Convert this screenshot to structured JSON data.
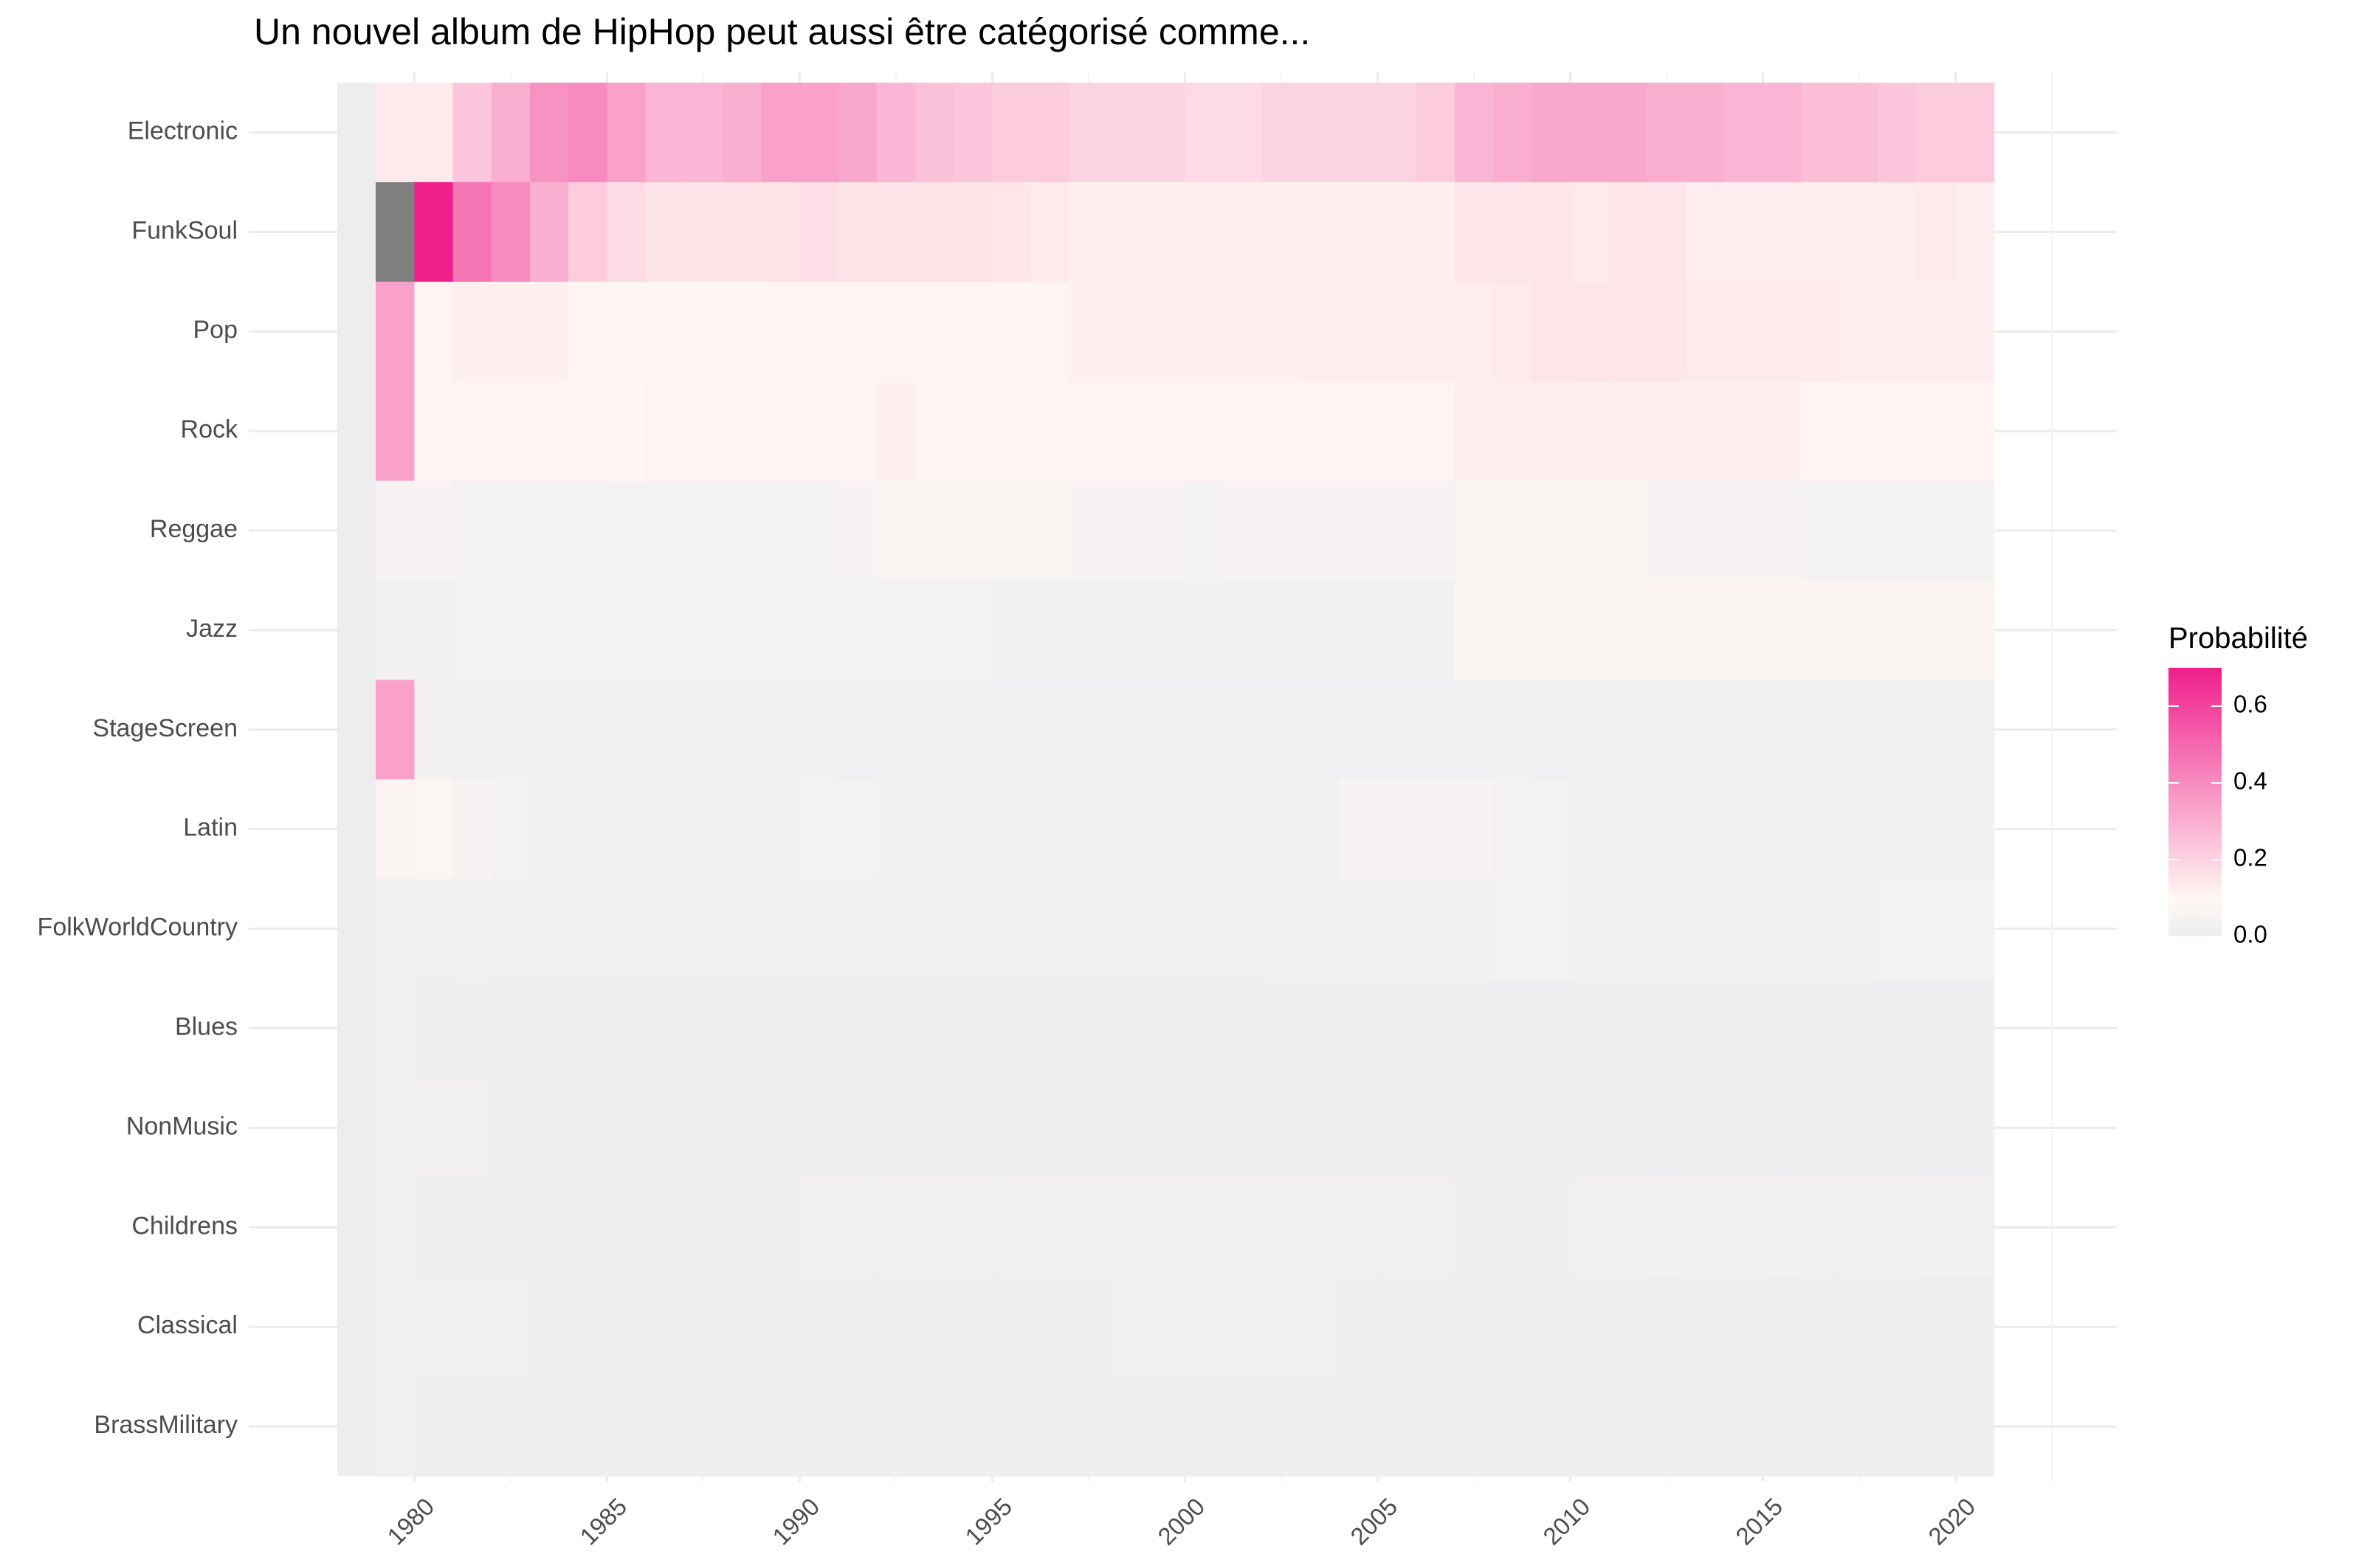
{
  "chart_data": {
    "type": "heatmap",
    "title": "Un nouvel album de HipHop  peut aussi être catégorisé comme...",
    "xlabel": "",
    "ylabel": "",
    "x": [
      1978,
      1979,
      1980,
      1981,
      1982,
      1983,
      1984,
      1985,
      1986,
      1987,
      1988,
      1989,
      1990,
      1991,
      1992,
      1993,
      1994,
      1995,
      1996,
      1997,
      1998,
      1999,
      2000,
      2001,
      2002,
      2003,
      2004,
      2005,
      2006,
      2007,
      2008,
      2009,
      2010,
      2011,
      2012,
      2013,
      2014,
      2015,
      2016,
      2017,
      2018,
      2019,
      2020
    ],
    "x_ticks": [
      "1980",
      "1985",
      "1990",
      "1995",
      "2000",
      "2005",
      "2010",
      "2015",
      "2020"
    ],
    "xlim": [
      1976.8,
      2021.6
    ],
    "y": [
      "Electronic",
      "FunkSoul",
      "Pop",
      "Rock",
      "Reggae",
      "Jazz",
      "StageScreen",
      "Latin",
      "FolkWorldCountry",
      "Blues",
      "NonMusic",
      "Childrens",
      "Classical",
      "BrassMilitary"
    ],
    "legend": {
      "title": "Probabilité",
      "position": "right",
      "ticks": [
        "0.6",
        "0.4",
        "0.2",
        "0.0"
      ],
      "min": 0.0,
      "max": 0.7,
      "color_low": "#ededf0",
      "color_mid": "#fff8f3",
      "color_high": "#ef1f8c",
      "na_color": "#7f7f7f"
    },
    "grid": true,
    "values": [
      [
        0,
        0.14,
        0.14,
        0.24,
        0.3,
        0.38,
        0.4,
        0.34,
        0.28,
        0.28,
        0.3,
        0.34,
        0.34,
        0.32,
        0.28,
        0.25,
        0.24,
        0.22,
        0.22,
        0.2,
        0.2,
        0.2,
        0.18,
        0.18,
        0.2,
        0.2,
        0.2,
        0.2,
        0.22,
        0.28,
        0.3,
        0.32,
        0.32,
        0.32,
        0.3,
        0.3,
        0.28,
        0.28,
        0.26,
        0.26,
        0.24,
        0.22,
        0.22
      ],
      [
        0,
        null,
        0.7,
        0.46,
        0.4,
        0.3,
        0.22,
        0.18,
        0.16,
        0.16,
        0.16,
        0.16,
        0.17,
        0.16,
        0.16,
        0.16,
        0.16,
        0.15,
        0.14,
        0.12,
        0.12,
        0.12,
        0.12,
        0.12,
        0.12,
        0.12,
        0.12,
        0.12,
        0.12,
        0.15,
        0.15,
        0.15,
        0.14,
        0.15,
        0.15,
        0.13,
        0.13,
        0.13,
        0.13,
        0.13,
        0.13,
        0.14,
        0.13
      ],
      [
        0,
        0.34,
        0.11,
        0.12,
        0.12,
        0.12,
        0.11,
        0.1,
        0.1,
        0.1,
        0.1,
        0.11,
        0.11,
        0.11,
        0.11,
        0.11,
        0.11,
        0.11,
        0.11,
        0.12,
        0.12,
        0.12,
        0.12,
        0.12,
        0.12,
        0.13,
        0.13,
        0.13,
        0.13,
        0.13,
        0.14,
        0.15,
        0.15,
        0.15,
        0.15,
        0.14,
        0.14,
        0.14,
        0.14,
        0.13,
        0.13,
        0.13,
        0.13
      ],
      [
        0,
        0.34,
        0.11,
        0.11,
        0.11,
        0.11,
        0.11,
        0.1,
        0.11,
        0.11,
        0.11,
        0.11,
        0.11,
        0.11,
        0.12,
        0.11,
        0.11,
        0.11,
        0.11,
        0.11,
        0.11,
        0.11,
        0.11,
        0.11,
        0.11,
        0.11,
        0.11,
        0.11,
        0.11,
        0.13,
        0.13,
        0.13,
        0.12,
        0.12,
        0.12,
        0.12,
        0.12,
        0.12,
        0.11,
        0.11,
        0.11,
        0.11,
        0.11
      ],
      [
        0,
        0.05,
        0.05,
        0.04,
        0.04,
        0.04,
        0.04,
        0.04,
        0.04,
        0.04,
        0.04,
        0.04,
        0.04,
        0.05,
        0.06,
        0.06,
        0.06,
        0.06,
        0.06,
        0.05,
        0.05,
        0.05,
        0.04,
        0.05,
        0.05,
        0.05,
        0.05,
        0.05,
        0.05,
        0.06,
        0.06,
        0.06,
        0.06,
        0.06,
        0.05,
        0.05,
        0.05,
        0.05,
        0.04,
        0.04,
        0.04,
        0.04,
        0.04
      ],
      [
        0,
        0.03,
        0.03,
        0.04,
        0.04,
        0.04,
        0.04,
        0.04,
        0.04,
        0.04,
        0.04,
        0.04,
        0.04,
        0.04,
        0.04,
        0.04,
        0.04,
        0.03,
        0.03,
        0.03,
        0.03,
        0.03,
        0.03,
        0.03,
        0.03,
        0.03,
        0.03,
        0.03,
        0.03,
        0.07,
        0.07,
        0.07,
        0.07,
        0.07,
        0.07,
        0.07,
        0.07,
        0.07,
        0.07,
        0.07,
        0.07,
        0.07,
        0.07
      ],
      [
        0,
        0.34,
        0.03,
        0.03,
        0.03,
        0.03,
        0.03,
        0.03,
        0.03,
        0.02,
        0.02,
        0.03,
        0.03,
        0.02,
        0.02,
        0.02,
        0.02,
        0.02,
        0.02,
        0.02,
        0.02,
        0.02,
        0.02,
        0.02,
        0.02,
        0.02,
        0.02,
        0.02,
        0.02,
        0.02,
        0.03,
        0.02,
        0.02,
        0.02,
        0.02,
        0.02,
        0.02,
        0.02,
        0.02,
        0.02,
        0.02,
        0.02,
        0.02
      ],
      [
        0,
        0.07,
        0.08,
        0.05,
        0.04,
        0.03,
        0.03,
        0.03,
        0.03,
        0.03,
        0.03,
        0.03,
        0.04,
        0.04,
        0.03,
        0.03,
        0.03,
        0.03,
        0.03,
        0.03,
        0.03,
        0.03,
        0.03,
        0.03,
        0.03,
        0.03,
        0.05,
        0.05,
        0.05,
        0.05,
        0.04,
        0.04,
        0.03,
        0.03,
        0.03,
        0.03,
        0.03,
        0.03,
        0.03,
        0.03,
        0.03,
        0.03,
        0.03
      ],
      [
        0,
        0.02,
        0.02,
        0.03,
        0.02,
        0.02,
        0.02,
        0.02,
        0.02,
        0.02,
        0.02,
        0.02,
        0.02,
        0.02,
        0.02,
        0.02,
        0.02,
        0.02,
        0.02,
        0.02,
        0.02,
        0.02,
        0.02,
        0.02,
        0.03,
        0.03,
        0.03,
        0.03,
        0.03,
        0.03,
        0.04,
        0.04,
        0.03,
        0.03,
        0.03,
        0.03,
        0.03,
        0.03,
        0.03,
        0.03,
        0.04,
        0.04,
        0.04
      ],
      [
        0,
        0.02,
        0.01,
        0.01,
        0.01,
        0.01,
        0.01,
        0.01,
        0.01,
        0.01,
        0.01,
        0.01,
        0.01,
        0.01,
        0.01,
        0.01,
        0.01,
        0.01,
        0.01,
        0.01,
        0.01,
        0.01,
        0.01,
        0.01,
        0.01,
        0.01,
        0.01,
        0.01,
        0.01,
        0.01,
        0.01,
        0.01,
        0.01,
        0.01,
        0.01,
        0.01,
        0.01,
        0.01,
        0.01,
        0.01,
        0.01,
        0.01,
        0.01
      ],
      [
        0,
        0.02,
        0.02,
        0.02,
        0.01,
        0.01,
        0.01,
        0.01,
        0.01,
        0.01,
        0.01,
        0.01,
        0.01,
        0.01,
        0.01,
        0.01,
        0.01,
        0.01,
        0.01,
        0.01,
        0.01,
        0.01,
        0.01,
        0.01,
        0.01,
        0.01,
        0.01,
        0.01,
        0.01,
        0.01,
        0.01,
        0.01,
        0.01,
        0.01,
        0.01,
        0.01,
        0.01,
        0.01,
        0.01,
        0.01,
        0.01,
        0.01,
        0.01
      ],
      [
        0,
        0.02,
        0.01,
        0.01,
        0.01,
        0.01,
        0.01,
        0.01,
        0.01,
        0.01,
        0.01,
        0.01,
        0.02,
        0.02,
        0.02,
        0.02,
        0.02,
        0.02,
        0.02,
        0.02,
        0.02,
        0.02,
        0.02,
        0.02,
        0.02,
        0.02,
        0.02,
        0.02,
        0.02,
        0.01,
        0.01,
        0.01,
        0.02,
        0.02,
        0.03,
        0.02,
        0.02,
        0.03,
        0.02,
        0.02,
        0.02,
        0.03,
        0.03
      ],
      [
        0,
        0.02,
        0.02,
        0.02,
        0.02,
        0.01,
        0.01,
        0.01,
        0.01,
        0.01,
        0.01,
        0.01,
        0.01,
        0.01,
        0.01,
        0.01,
        0.01,
        0.01,
        0.01,
        0.01,
        0.02,
        0.02,
        0.02,
        0.02,
        0.02,
        0.02,
        0.01,
        0.01,
        0.01,
        0.01,
        0.01,
        0.01,
        0.01,
        0.01,
        0.01,
        0.01,
        0.01,
        0.01,
        0.01,
        0.01,
        0.01,
        0.01,
        0.01
      ],
      [
        0,
        0.02,
        0.01,
        0.01,
        0.01,
        0.01,
        0.01,
        0.01,
        0.01,
        0.01,
        0.01,
        0.01,
        0.01,
        0.01,
        0.01,
        0.01,
        0.01,
        0.01,
        0.01,
        0.01,
        0.01,
        0.01,
        0.01,
        0.01,
        0.01,
        0.01,
        0.01,
        0.01,
        0.01,
        0.01,
        0.01,
        0.01,
        0.01,
        0.01,
        0.01,
        0.01,
        0.01,
        0.01,
        0.01,
        0.01,
        0.01,
        0.01,
        0.01
      ]
    ]
  }
}
